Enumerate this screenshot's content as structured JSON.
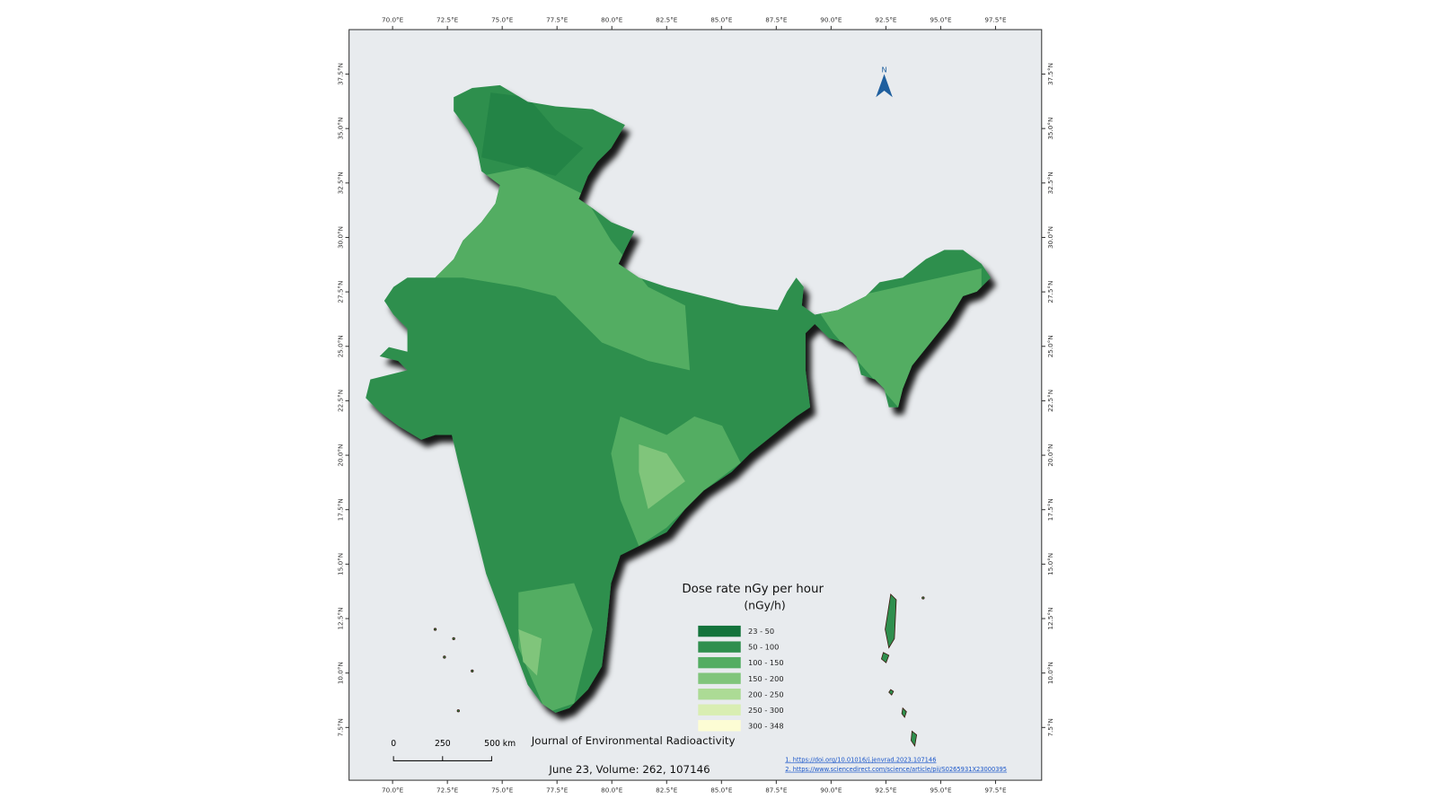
{
  "map": {
    "lon_ticks": [
      "70.0°E",
      "72.5°E",
      "75.0°E",
      "77.5°E",
      "80.0°E",
      "82.5°E",
      "85.0°E",
      "87.5°E",
      "90.0°E",
      "92.5°E",
      "95.0°E",
      "97.5°E"
    ],
    "lat_ticks": [
      "7.5°N",
      "10.0°N",
      "12.5°N",
      "15.0°N",
      "17.5°N",
      "20.0°N",
      "22.5°N",
      "25.0°N",
      "27.5°N",
      "30.0°N",
      "32.5°N",
      "35.0°N",
      "37.5°N"
    ],
    "north_label": "N",
    "legend": {
      "title": "Dose rate nGy per hour",
      "unit": "(nGy/h)",
      "items": [
        {
          "label": "23 - 50",
          "color": "#13733b"
        },
        {
          "label": "50 - 100",
          "color": "#2f8f4e"
        },
        {
          "label": "100 - 150",
          "color": "#53ad62"
        },
        {
          "label": "150 - 200",
          "color": "#80c57b"
        },
        {
          "label": "200 - 250",
          "color": "#acdb95"
        },
        {
          "label": "250 - 300",
          "color": "#d9eeb2"
        },
        {
          "label": "300 - 348",
          "color": "#fdfdd4"
        }
      ]
    },
    "scale_bar": [
      "0",
      "250",
      "500 km"
    ],
    "journal": "Journal of Environmental Radioactivity",
    "citation": "June 23, Volume: 262, 107146",
    "references": [
      "1. https://doi.org/10.01016/j.jenvrad.2023.107146",
      "2. https://www.sciencedirect.com/science/article/pii/S0265931X23000395"
    ]
  }
}
